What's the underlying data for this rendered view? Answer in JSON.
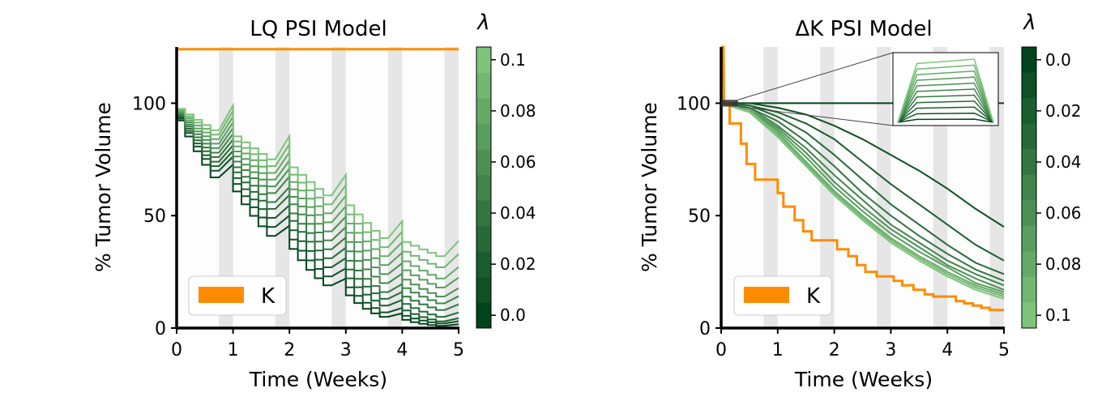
{
  "chart_data": [
    {
      "type": "line",
      "title": "LQ PSI Model",
      "xlabel": "Time (Weeks)",
      "ylabel": "% Tumor Volume",
      "xlim": [
        0,
        5
      ],
      "ylim": [
        0,
        125
      ],
      "xticks": [
        "0",
        "1",
        "2",
        "3",
        "4",
        "5"
      ],
      "yticks": [
        "0",
        "50",
        "100"
      ],
      "grid": false,
      "shaded_weekend_bands": [
        [
          0.75,
          1.0
        ],
        [
          1.75,
          2.0
        ],
        [
          2.75,
          3.0
        ],
        [
          3.75,
          4.0
        ],
        [
          4.75,
          5.0
        ]
      ],
      "legend": {
        "label": "K",
        "color": "#ff8c00",
        "position": "lower-left"
      },
      "carrying_capacity": {
        "name": "K",
        "value": 124,
        "color": "#ff8c00"
      },
      "colorbar": {
        "label": "λ",
        "ticks": [
          "0.0",
          "0.02",
          "0.04",
          "0.06",
          "0.08",
          "0.1"
        ],
        "min": -0.005,
        "max": 0.105,
        "direction": "increasing-up",
        "cmap": "Greens"
      },
      "series": [
        {
          "lambda": 0.0,
          "week_end_values": [
            100,
            67,
            41,
            19,
            5,
            1
          ]
        },
        {
          "lambda": 0.01,
          "week_end_values": [
            100,
            70,
            45,
            23,
            7,
            2
          ]
        },
        {
          "lambda": 0.02,
          "week_end_values": [
            100,
            72,
            49,
            27,
            10,
            3
          ]
        },
        {
          "lambda": 0.03,
          "week_end_values": [
            100,
            74,
            53,
            31,
            13,
            5
          ]
        },
        {
          "lambda": 0.04,
          "week_end_values": [
            100,
            76,
            56,
            35,
            16,
            8
          ]
        },
        {
          "lambda": 0.05,
          "week_end_values": [
            100,
            78,
            60,
            39,
            20,
            11
          ]
        },
        {
          "lambda": 0.06,
          "week_end_values": [
            100,
            80,
            63,
            43,
            24,
            14
          ]
        },
        {
          "lambda": 0.07,
          "week_end_values": [
            100,
            82,
            66,
            47,
            28,
            18
          ]
        },
        {
          "lambda": 0.08,
          "week_end_values": [
            100,
            84,
            69,
            51,
            32,
            22
          ]
        },
        {
          "lambda": 0.09,
          "week_end_values": [
            100,
            86,
            72,
            55,
            36,
            27
          ]
        },
        {
          "lambda": 0.1,
          "week_end_values": [
            100,
            88,
            75,
            59,
            40,
            32
          ]
        }
      ]
    },
    {
      "type": "line",
      "title": "ΔK PSI Model",
      "xlabel": "Time (Weeks)",
      "ylabel": "% Tumor Volume",
      "xlim": [
        0,
        5
      ],
      "ylim": [
        0,
        125
      ],
      "xticks": [
        "0",
        "1",
        "2",
        "3",
        "4",
        "5"
      ],
      "yticks": [
        "0",
        "50",
        "100"
      ],
      "grid": false,
      "shaded_weekend_bands": [
        [
          0.75,
          1.0
        ],
        [
          1.75,
          2.0
        ],
        [
          2.75,
          3.0
        ],
        [
          3.75,
          4.0
        ],
        [
          4.75,
          5.0
        ]
      ],
      "legend": {
        "label": "K",
        "color": "#ff8c00",
        "position": "lower-left"
      },
      "carrying_capacity_steps": {
        "name": "K",
        "color": "#ff8c00",
        "points": [
          [
            0,
            125
          ],
          [
            0.04,
            125
          ],
          [
            0.05,
            100
          ],
          [
            0.15,
            100
          ],
          [
            0.15,
            91
          ],
          [
            0.35,
            91
          ],
          [
            0.35,
            82
          ],
          [
            0.45,
            82
          ],
          [
            0.45,
            73
          ],
          [
            0.6,
            73
          ],
          [
            0.6,
            66
          ],
          [
            1.0,
            66
          ],
          [
            1.0,
            60
          ],
          [
            1.1,
            60
          ],
          [
            1.1,
            54
          ],
          [
            1.3,
            54
          ],
          [
            1.3,
            48
          ],
          [
            1.45,
            48
          ],
          [
            1.45,
            43
          ],
          [
            1.6,
            43
          ],
          [
            1.6,
            39
          ],
          [
            2.05,
            39
          ],
          [
            2.05,
            35
          ],
          [
            2.25,
            35
          ],
          [
            2.25,
            32
          ],
          [
            2.4,
            32
          ],
          [
            2.4,
            28
          ],
          [
            2.55,
            28
          ],
          [
            2.55,
            25
          ],
          [
            2.75,
            25
          ],
          [
            2.75,
            23
          ],
          [
            3.05,
            23
          ],
          [
            3.05,
            21
          ],
          [
            3.2,
            21
          ],
          [
            3.2,
            19
          ],
          [
            3.4,
            19
          ],
          [
            3.4,
            17
          ],
          [
            3.6,
            17
          ],
          [
            3.6,
            15
          ],
          [
            3.75,
            15
          ],
          [
            3.75,
            14
          ],
          [
            4.15,
            14
          ],
          [
            4.15,
            12
          ],
          [
            4.3,
            12
          ],
          [
            4.3,
            11
          ],
          [
            4.45,
            11
          ],
          [
            4.45,
            10
          ],
          [
            4.6,
            10
          ],
          [
            4.6,
            9
          ],
          [
            4.75,
            9
          ],
          [
            4.75,
            8
          ],
          [
            5.0,
            8
          ]
        ]
      },
      "colorbar": {
        "label": "λ",
        "ticks": [
          "0.0",
          "0.02",
          "0.04",
          "0.06",
          "0.08",
          "0.1"
        ],
        "min": -0.005,
        "max": 0.105,
        "direction": "increasing-down",
        "cmap": "Greens_r"
      },
      "series": [
        {
          "lambda": 0.0,
          "x": [
            0,
            1,
            2,
            3,
            4,
            5
          ],
          "y": [
            100,
            100,
            100,
            100,
            100,
            100
          ]
        },
        {
          "lambda": 0.01,
          "x": [
            0,
            0.5,
            1,
            1.5,
            2,
            2.5,
            3,
            3.5,
            4,
            4.5,
            5
          ],
          "y": [
            100,
            100,
            98,
            95,
            90,
            84,
            77,
            70,
            62,
            53,
            45
          ]
        },
        {
          "lambda": 0.02,
          "x": [
            0,
            0.5,
            1,
            1.5,
            2,
            2.5,
            3,
            3.5,
            4,
            4.5,
            5
          ],
          "y": [
            100,
            99,
            96,
            91,
            84,
            74,
            64,
            55,
            46,
            37,
            30
          ]
        },
        {
          "lambda": 0.03,
          "x": [
            0,
            0.5,
            1,
            1.5,
            2,
            2.5,
            3,
            3.5,
            4,
            4.5,
            5
          ],
          "y": [
            100,
            99,
            94,
            87,
            77,
            66,
            55,
            46,
            37,
            29,
            24
          ]
        },
        {
          "lambda": 0.04,
          "x": [
            0,
            0.5,
            1,
            1.5,
            2,
            2.5,
            3,
            3.5,
            4,
            4.5,
            5
          ],
          "y": [
            100,
            98,
            92,
            83,
            72,
            60,
            50,
            41,
            33,
            26,
            21
          ]
        },
        {
          "lambda": 0.05,
          "x": [
            0,
            0.5,
            1,
            1.5,
            2,
            2.5,
            3,
            3.5,
            4,
            4.5,
            5
          ],
          "y": [
            100,
            98,
            90,
            80,
            68,
            57,
            46,
            38,
            30,
            24,
            19
          ]
        },
        {
          "lambda": 0.06,
          "x": [
            0,
            0.5,
            1,
            1.5,
            2,
            2.5,
            3,
            3.5,
            4,
            4.5,
            5
          ],
          "y": [
            100,
            97,
            89,
            78,
            65,
            54,
            44,
            36,
            28,
            22,
            17
          ]
        },
        {
          "lambda": 0.07,
          "x": [
            0,
            0.5,
            1,
            1.5,
            2,
            2.5,
            3,
            3.5,
            4,
            4.5,
            5
          ],
          "y": [
            100,
            97,
            88,
            76,
            63,
            52,
            42,
            34,
            27,
            20,
            16
          ]
        },
        {
          "lambda": 0.08,
          "x": [
            0,
            0.5,
            1,
            1.5,
            2,
            2.5,
            3,
            3.5,
            4,
            4.5,
            5
          ],
          "y": [
            100,
            97,
            87,
            74,
            61,
            50,
            40,
            32,
            25,
            19,
            15
          ]
        },
        {
          "lambda": 0.09,
          "x": [
            0,
            0.5,
            1,
            1.5,
            2,
            2.5,
            3,
            3.5,
            4,
            4.5,
            5
          ],
          "y": [
            100,
            96,
            86,
            73,
            60,
            49,
            39,
            31,
            24,
            18,
            14
          ]
        },
        {
          "lambda": 0.1,
          "x": [
            0,
            0.5,
            1,
            1.5,
            2,
            2.5,
            3,
            3.5,
            4,
            4.5,
            5
          ],
          "y": [
            100,
            96,
            85,
            72,
            59,
            48,
            38,
            30,
            23,
            17,
            13
          ]
        }
      ],
      "inset": {
        "xlim": [
          0,
          0.3
        ],
        "ylim": [
          99.5,
          102.4
        ],
        "description_values": "zoom of early-time region near 100%"
      }
    }
  ]
}
